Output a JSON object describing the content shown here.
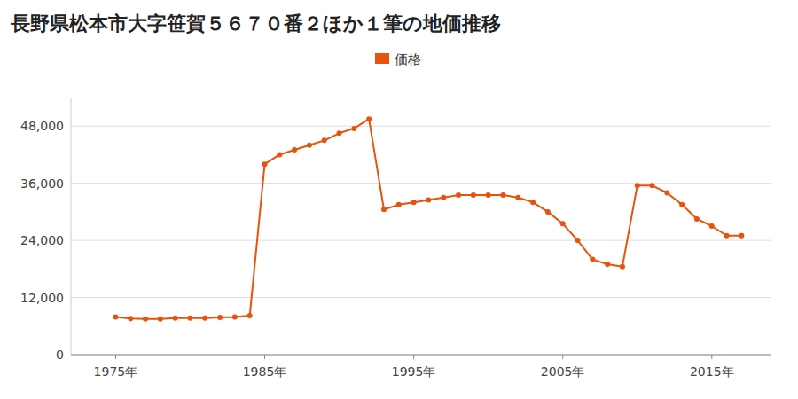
{
  "chart_data": {
    "type": "line",
    "title": "長野県松本市大字笹賀５６７０番２ほか１筆の地価推移",
    "x": [
      1975,
      1976,
      1977,
      1978,
      1979,
      1980,
      1981,
      1982,
      1983,
      1984,
      1985,
      1986,
      1987,
      1988,
      1989,
      1990,
      1991,
      1992,
      1993,
      1994,
      1995,
      1996,
      1997,
      1998,
      1999,
      2000,
      2001,
      2002,
      2003,
      2004,
      2005,
      2006,
      2007,
      2008,
      2009,
      2010,
      2011,
      2012,
      2013,
      2014,
      2015,
      2016,
      2017
    ],
    "series": [
      {
        "name": "価格",
        "color": "#E8520A",
        "marker": "circle",
        "values": [
          7900,
          7600,
          7500,
          7500,
          7700,
          7700,
          7700,
          7800,
          7900,
          8200,
          40000,
          42000,
          43000,
          44000,
          45000,
          46500,
          47500,
          49500,
          30500,
          31500,
          32000,
          32500,
          33000,
          33500,
          33500,
          33500,
          33500,
          33000,
          32000,
          30000,
          27500,
          24000,
          20000,
          19000,
          18500,
          35500,
          35500,
          34000,
          31500,
          28500,
          27000,
          25000,
          25000
        ]
      }
    ],
    "xlim": [
      1972,
      2019
    ],
    "xticks": [
      {
        "value": 1975,
        "label": "1975年"
      },
      {
        "value": 1985,
        "label": "1985年"
      },
      {
        "value": 1995,
        "label": "1995年"
      },
      {
        "value": 2005,
        "label": "2005年"
      },
      {
        "value": 2015,
        "label": "2015年"
      }
    ],
    "ylim": [
      0,
      54000
    ],
    "yticks": [
      0,
      {
        "value": 12000,
        "label": "12,000"
      },
      {
        "value": 24000,
        "label": "24,000"
      },
      {
        "value": 36000,
        "label": "36,000"
      },
      {
        "value": 48000,
        "label": "48,000"
      }
    ],
    "grid": true,
    "legend": "top"
  }
}
